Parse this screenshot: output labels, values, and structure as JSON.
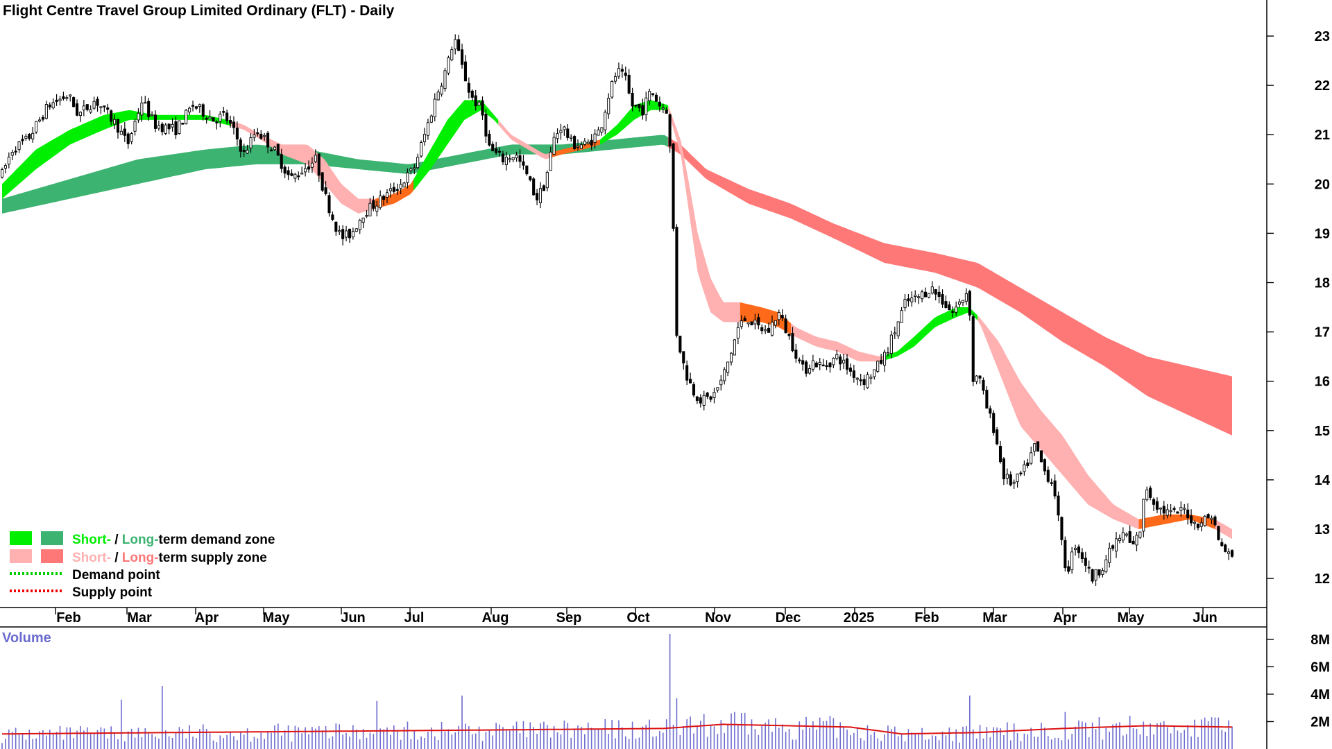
{
  "chart_data": {
    "type": "candlestick",
    "title": "Flight Centre Travel Group Limited Ordinary (FLT) - Daily",
    "x_ticks": [
      "Feb",
      "Mar",
      "Apr",
      "May",
      "Jun",
      "Jul",
      "Aug",
      "Sep",
      "Oct",
      "Nov",
      "Dec",
      "2025",
      "Feb",
      "Mar",
      "Apr",
      "May",
      "Jun"
    ],
    "y_ticks": [
      "12",
      "13",
      "14",
      "15",
      "16",
      "17",
      "18",
      "19",
      "20",
      "21",
      "22",
      "23"
    ],
    "ylim": [
      11.3,
      23.7
    ],
    "price_path": [
      [
        0,
        20.2
      ],
      [
        12,
        20.7
      ],
      [
        30,
        20.9
      ],
      [
        55,
        21.6
      ],
      [
        78,
        21.8
      ],
      [
        90,
        21.4
      ],
      [
        110,
        21.7
      ],
      [
        135,
        21.2
      ],
      [
        148,
        20.8
      ],
      [
        165,
        21.7
      ],
      [
        180,
        21.2
      ],
      [
        205,
        21.1
      ],
      [
        225,
        21.6
      ],
      [
        250,
        21.3
      ],
      [
        262,
        21.4
      ],
      [
        275,
        21.0
      ],
      [
        285,
        20.6
      ],
      [
        300,
        21.1
      ],
      [
        320,
        20.7
      ],
      [
        340,
        20.1
      ],
      [
        355,
        20.3
      ],
      [
        370,
        20.5
      ],
      [
        380,
        19.8
      ],
      [
        392,
        19.2
      ],
      [
        400,
        18.9
      ],
      [
        412,
        19.0
      ],
      [
        425,
        19.4
      ],
      [
        440,
        19.6
      ],
      [
        455,
        19.8
      ],
      [
        470,
        20.0
      ],
      [
        485,
        20.3
      ],
      [
        500,
        21.1
      ],
      [
        512,
        21.8
      ],
      [
        525,
        22.4
      ],
      [
        533,
        23.0
      ],
      [
        540,
        22.5
      ],
      [
        552,
        21.8
      ],
      [
        565,
        21.5
      ],
      [
        575,
        20.7
      ],
      [
        590,
        20.5
      ],
      [
        605,
        20.6
      ],
      [
        618,
        20.2
      ],
      [
        630,
        19.7
      ],
      [
        640,
        20.0
      ],
      [
        650,
        20.9
      ],
      [
        660,
        21.2
      ],
      [
        672,
        20.8
      ],
      [
        690,
        20.8
      ],
      [
        705,
        21.1
      ],
      [
        715,
        21.8
      ],
      [
        725,
        22.3
      ],
      [
        735,
        22.1
      ],
      [
        742,
        21.6
      ],
      [
        755,
        21.5
      ],
      [
        765,
        21.9
      ],
      [
        775,
        21.6
      ],
      [
        785,
        21.5
      ],
      [
        790,
        19.8
      ],
      [
        795,
        17.0
      ],
      [
        805,
        16.2
      ],
      [
        815,
        15.8
      ],
      [
        825,
        15.6
      ],
      [
        838,
        15.7
      ],
      [
        848,
        16.0
      ],
      [
        858,
        16.5
      ],
      [
        868,
        17.1
      ],
      [
        878,
        17.3
      ],
      [
        890,
        17.1
      ],
      [
        903,
        17.0
      ],
      [
        915,
        17.4
      ],
      [
        925,
        17.0
      ],
      [
        935,
        16.6
      ],
      [
        945,
        16.2
      ],
      [
        955,
        16.4
      ],
      [
        968,
        16.3
      ],
      [
        985,
        16.5
      ],
      [
        1000,
        16.2
      ],
      [
        1015,
        16.0
      ],
      [
        1028,
        16.2
      ],
      [
        1040,
        16.5
      ],
      [
        1052,
        17.0
      ],
      [
        1065,
        17.6
      ],
      [
        1080,
        17.7
      ],
      [
        1095,
        17.9
      ],
      [
        1110,
        17.6
      ],
      [
        1120,
        17.4
      ],
      [
        1130,
        17.6
      ],
      [
        1140,
        17.9
      ],
      [
        1143,
        15.9
      ],
      [
        1150,
        16.2
      ],
      [
        1160,
        15.5
      ],
      [
        1170,
        15.0
      ],
      [
        1180,
        14.1
      ],
      [
        1192,
        13.9
      ],
      [
        1205,
        14.2
      ],
      [
        1218,
        14.7
      ],
      [
        1228,
        14.2
      ],
      [
        1240,
        13.9
      ],
      [
        1248,
        12.8
      ],
      [
        1255,
        12.1
      ],
      [
        1265,
        12.7
      ],
      [
        1275,
        12.4
      ],
      [
        1285,
        12.0
      ],
      [
        1295,
        12.2
      ],
      [
        1305,
        12.5
      ],
      [
        1315,
        12.8
      ],
      [
        1325,
        12.9
      ],
      [
        1332,
        12.6
      ],
      [
        1342,
        13.0
      ],
      [
        1348,
        13.9
      ],
      [
        1356,
        13.6
      ],
      [
        1366,
        13.4
      ],
      [
        1380,
        13.3
      ],
      [
        1395,
        13.4
      ],
      [
        1405,
        13.1
      ],
      [
        1418,
        13.2
      ],
      [
        1428,
        13.3
      ],
      [
        1432,
        12.8
      ],
      [
        1440,
        12.6
      ],
      [
        1450,
        12.4
      ]
    ],
    "short_zone": {
      "upper": [
        [
          0,
          20.0
        ],
        [
          40,
          20.7
        ],
        [
          80,
          21.1
        ],
        [
          120,
          21.4
        ],
        [
          150,
          21.5
        ],
        [
          180,
          21.4
        ],
        [
          210,
          21.4
        ],
        [
          240,
          21.4
        ],
        [
          265,
          21.3
        ],
        [
          285,
          21.2
        ],
        [
          305,
          21.0
        ],
        [
          330,
          20.8
        ],
        [
          360,
          20.8
        ],
        [
          380,
          20.5
        ],
        [
          400,
          20.0
        ],
        [
          420,
          19.7
        ],
        [
          440,
          19.7
        ],
        [
          462,
          19.8
        ],
        [
          482,
          20.0
        ],
        [
          505,
          20.7
        ],
        [
          525,
          21.3
        ],
        [
          545,
          21.7
        ],
        [
          565,
          21.7
        ],
        [
          580,
          21.4
        ],
        [
          600,
          21.0
        ],
        [
          620,
          20.8
        ],
        [
          640,
          20.6
        ],
        [
          660,
          20.7
        ],
        [
          685,
          20.8
        ],
        [
          705,
          20.9
        ],
        [
          725,
          21.2
        ],
        [
          745,
          21.6
        ],
        [
          765,
          21.7
        ],
        [
          785,
          21.6
        ],
        [
          800,
          20.9
        ],
        [
          810,
          20.0
        ],
        [
          820,
          19.0
        ],
        [
          835,
          18.1
        ],
        [
          850,
          17.6
        ],
        [
          870,
          17.6
        ],
        [
          895,
          17.5
        ],
        [
          915,
          17.4
        ],
        [
          935,
          17.1
        ],
        [
          960,
          16.9
        ],
        [
          985,
          16.8
        ],
        [
          1010,
          16.6
        ],
        [
          1035,
          16.5
        ],
        [
          1055,
          16.6
        ],
        [
          1075,
          16.9
        ],
        [
          1100,
          17.3
        ],
        [
          1125,
          17.5
        ],
        [
          1140,
          17.5
        ],
        [
          1152,
          17.3
        ],
        [
          1175,
          16.8
        ],
        [
          1200,
          16.0
        ],
        [
          1225,
          15.4
        ],
        [
          1250,
          14.9
        ],
        [
          1280,
          14.1
        ],
        [
          1310,
          13.5
        ],
        [
          1340,
          13.2
        ],
        [
          1370,
          13.3
        ],
        [
          1400,
          13.3
        ],
        [
          1430,
          13.2
        ],
        [
          1450,
          13.0
        ]
      ],
      "lower": [
        [
          0,
          19.7
        ],
        [
          40,
          20.3
        ],
        [
          80,
          20.8
        ],
        [
          120,
          21.1
        ],
        [
          150,
          21.3
        ],
        [
          180,
          21.3
        ],
        [
          210,
          21.3
        ],
        [
          240,
          21.3
        ],
        [
          265,
          21.2
        ],
        [
          285,
          21.1
        ],
        [
          305,
          20.9
        ],
        [
          330,
          20.6
        ],
        [
          360,
          20.4
        ],
        [
          380,
          20.0
        ],
        [
          400,
          19.6
        ],
        [
          420,
          19.4
        ],
        [
          440,
          19.5
        ],
        [
          462,
          19.6
        ],
        [
          482,
          19.8
        ],
        [
          505,
          20.3
        ],
        [
          525,
          20.8
        ],
        [
          545,
          21.3
        ],
        [
          565,
          21.5
        ],
        [
          580,
          21.3
        ],
        [
          600,
          20.9
        ],
        [
          620,
          20.7
        ],
        [
          640,
          20.5
        ],
        [
          660,
          20.6
        ],
        [
          685,
          20.7
        ],
        [
          705,
          20.8
        ],
        [
          725,
          21.0
        ],
        [
          745,
          21.3
        ],
        [
          765,
          21.5
        ],
        [
          785,
          21.5
        ],
        [
          800,
          20.6
        ],
        [
          810,
          19.4
        ],
        [
          820,
          18.2
        ],
        [
          835,
          17.4
        ],
        [
          850,
          17.2
        ],
        [
          870,
          17.2
        ],
        [
          895,
          17.2
        ],
        [
          915,
          17.1
        ],
        [
          935,
          16.9
        ],
        [
          960,
          16.7
        ],
        [
          985,
          16.6
        ],
        [
          1010,
          16.4
        ],
        [
          1035,
          16.4
        ],
        [
          1055,
          16.5
        ],
        [
          1075,
          16.7
        ],
        [
          1100,
          17.1
        ],
        [
          1125,
          17.3
        ],
        [
          1140,
          17.4
        ],
        [
          1152,
          17.2
        ],
        [
          1175,
          16.2
        ],
        [
          1200,
          15.1
        ],
        [
          1225,
          14.6
        ],
        [
          1250,
          14.1
        ],
        [
          1280,
          13.5
        ],
        [
          1310,
          13.2
        ],
        [
          1340,
          13.0
        ],
        [
          1370,
          13.1
        ],
        [
          1400,
          13.2
        ],
        [
          1430,
          13.0
        ],
        [
          1450,
          12.8
        ]
      ],
      "states": [
        [
          0,
          270,
          "demand"
        ],
        [
          270,
          305,
          "supply-weak"
        ],
        [
          305,
          330,
          "supply-weak"
        ],
        [
          330,
          380,
          "supply-weak"
        ],
        [
          380,
          440,
          "supply-weak"
        ],
        [
          440,
          485,
          "supply"
        ],
        [
          485,
          585,
          "demand"
        ],
        [
          585,
          645,
          "supply-weak"
        ],
        [
          645,
          705,
          "supply"
        ],
        [
          705,
          785,
          "demand"
        ],
        [
          785,
          870,
          "supply-weak"
        ],
        [
          870,
          930,
          "supply"
        ],
        [
          930,
          1040,
          "supply-weak"
        ],
        [
          1040,
          1150,
          "demand"
        ],
        [
          1150,
          1340,
          "supply-weak"
        ],
        [
          1340,
          1430,
          "supply"
        ],
        [
          1430,
          1450,
          "supply-weak"
        ]
      ]
    },
    "long_zone": {
      "upper": [
        [
          0,
          19.7
        ],
        [
          80,
          20.1
        ],
        [
          160,
          20.5
        ],
        [
          240,
          20.7
        ],
        [
          300,
          20.8
        ],
        [
          360,
          20.7
        ],
        [
          420,
          20.5
        ],
        [
          480,
          20.4
        ],
        [
          540,
          20.6
        ],
        [
          600,
          20.8
        ],
        [
          660,
          20.8
        ],
        [
          720,
          20.9
        ],
        [
          780,
          21.0
        ],
        [
          800,
          20.8
        ],
        [
          830,
          20.3
        ],
        [
          880,
          19.9
        ],
        [
          930,
          19.6
        ],
        [
          980,
          19.2
        ],
        [
          1040,
          18.8
        ],
        [
          1100,
          18.6
        ],
        [
          1150,
          18.4
        ],
        [
          1200,
          17.9
        ],
        [
          1250,
          17.4
        ],
        [
          1300,
          16.9
        ],
        [
          1350,
          16.5
        ],
        [
          1400,
          16.3
        ],
        [
          1450,
          16.1
        ]
      ],
      "lower": [
        [
          0,
          19.4
        ],
        [
          80,
          19.7
        ],
        [
          160,
          20.0
        ],
        [
          240,
          20.3
        ],
        [
          300,
          20.4
        ],
        [
          360,
          20.4
        ],
        [
          420,
          20.3
        ],
        [
          480,
          20.2
        ],
        [
          540,
          20.4
        ],
        [
          600,
          20.6
        ],
        [
          660,
          20.6
        ],
        [
          720,
          20.7
        ],
        [
          780,
          20.8
        ],
        [
          800,
          20.6
        ],
        [
          830,
          20.1
        ],
        [
          880,
          19.6
        ],
        [
          930,
          19.3
        ],
        [
          980,
          18.9
        ],
        [
          1040,
          18.4
        ],
        [
          1100,
          18.2
        ],
        [
          1150,
          17.9
        ],
        [
          1200,
          17.4
        ],
        [
          1250,
          16.8
        ],
        [
          1300,
          16.3
        ],
        [
          1350,
          15.7
        ],
        [
          1400,
          15.3
        ],
        [
          1450,
          14.9
        ]
      ],
      "states": [
        [
          0,
          785,
          "demand"
        ],
        [
          785,
          1450,
          "supply"
        ]
      ]
    },
    "volume": {
      "title": "Volume",
      "y_ticks": [
        "2M",
        "4M",
        "6M",
        "8M"
      ],
      "ylim": [
        0,
        8.7
      ],
      "unit": "M",
      "spikes": [
        [
          140,
          3.6
        ],
        [
          188,
          4.6
        ],
        [
          440,
          3.5
        ],
        [
          542,
          3.9
        ],
        [
          788,
          8.4
        ],
        [
          795,
          3.7
        ],
        [
          862,
          2.7
        ],
        [
          1140,
          3.9
        ],
        [
          1253,
          2.7
        ],
        [
          1432,
          2.3
        ]
      ],
      "average": [
        [
          0,
          1.1
        ],
        [
          200,
          1.2
        ],
        [
          400,
          1.3
        ],
        [
          600,
          1.4
        ],
        [
          780,
          1.5
        ],
        [
          850,
          1.8
        ],
        [
          1000,
          1.6
        ],
        [
          1060,
          1.1
        ],
        [
          1150,
          1.2
        ],
        [
          1250,
          1.5
        ],
        [
          1350,
          1.7
        ],
        [
          1450,
          1.6
        ]
      ]
    },
    "legend": [
      {
        "lead": "Short-",
        "sep": " / ",
        "mid": "Long-",
        "tail": "term demand zone"
      },
      {
        "lead": "Short-",
        "sep": " / ",
        "mid": "Long-",
        "tail": "term supply zone"
      },
      {
        "text": "Demand point"
      },
      {
        "text": "Supply point"
      }
    ],
    "colors": {
      "demand_short": "#00ee00",
      "demand_long": "#3cb371",
      "supply_short": "#ffb0b0",
      "supply_long": "#ff7878",
      "supply_short_strong": "#ff6a1a",
      "demand_point": "#00cc00",
      "supply_point": "#ee0000",
      "volume_bar": "#6b6bcf",
      "volume_avg": "#dd1111",
      "volume_title": "#6b6bcf"
    }
  }
}
